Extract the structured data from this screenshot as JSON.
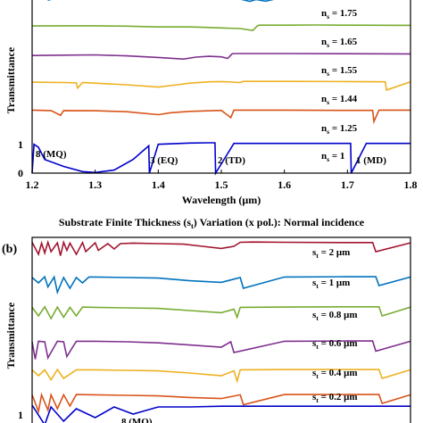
{
  "chart_data": [
    {
      "type": "line",
      "panel": "",
      "title": "",
      "xlabel": "Wavelength (μm)",
      "ylabel": "Transmittance",
      "xlim": [
        1.2,
        1.8
      ],
      "xticks": [
        "1.2",
        "1.3",
        "1.4",
        "1.5",
        "1.6",
        "1.7",
        "1.8"
      ],
      "yticks": [
        "0",
        "1"
      ],
      "series": [
        {
          "name": "n_s = 1.75",
          "sub": "s",
          "label": "n",
          "rest": " = 1.75",
          "color": "#0072bd",
          "x": [
            1.2,
            1.22,
            1.226,
            1.24,
            1.3,
            1.34,
            1.36,
            1.38,
            1.4,
            1.44,
            1.45,
            1.48,
            1.5,
            1.53,
            1.545,
            1.555,
            1.57,
            1.6,
            1.62,
            1.65,
            1.7,
            1.75,
            1.8
          ],
          "y": [
            0.93,
            0.93,
            0.82,
            0.93,
            0.92,
            0.92,
            0.91,
            0.9,
            0.91,
            0.91,
            0.88,
            0.92,
            0.9,
            0.87,
            0.75,
            0.84,
            0.76,
            0.97,
            0.98,
            0.99,
            1.0,
            1.0,
            1.0
          ]
        },
        {
          "name": "n_s = 1.65",
          "sub": "s",
          "label": "n",
          "rest": " = 1.65",
          "color": "#77ac30",
          "x": [
            1.2,
            1.25,
            1.3,
            1.35,
            1.4,
            1.45,
            1.47,
            1.5,
            1.53,
            1.55,
            1.557,
            1.56,
            1.6,
            1.65,
            1.7,
            1.8
          ],
          "y": [
            0.95,
            0.96,
            0.96,
            0.94,
            0.9,
            0.9,
            0.88,
            0.85,
            0.82,
            0.72,
            0.95,
            0.99,
            0.99,
            1.0,
            0.99,
            0.98
          ]
        },
        {
          "name": "n_s = 1.55",
          "sub": "s",
          "label": "n",
          "rest": " = 1.55",
          "color": "#7e2f8e",
          "x": [
            1.2,
            1.25,
            1.3,
            1.35,
            1.4,
            1.44,
            1.46,
            1.48,
            1.5,
            1.51,
            1.517,
            1.52,
            1.55,
            1.6,
            1.7,
            1.8
          ],
          "y": [
            0.9,
            0.92,
            0.93,
            0.88,
            0.8,
            0.72,
            0.82,
            0.86,
            0.83,
            0.75,
            0.98,
            1.0,
            1.0,
            1.0,
            0.99,
            0.98
          ]
        },
        {
          "name": "n_s = 1.44",
          "sub": "s",
          "label": "n",
          "rest": " = 1.44",
          "color": "#edb120",
          "x": [
            1.2,
            1.25,
            1.27,
            1.272,
            1.28,
            1.35,
            1.4,
            1.43,
            1.45,
            1.48,
            1.5,
            1.53,
            1.535,
            1.6,
            1.7,
            1.76,
            1.762,
            1.8
          ],
          "y": [
            0.95,
            0.93,
            0.92,
            0.65,
            0.93,
            0.82,
            0.7,
            0.82,
            0.9,
            0.97,
            0.98,
            0.93,
            0.99,
            0.99,
            0.98,
            0.97,
            0.55,
            0.97
          ]
        },
        {
          "name": "n_s = 1.25",
          "sub": "s",
          "label": "n",
          "rest": " = 1.25",
          "color": "#d95319",
          "x": [
            1.2,
            1.23,
            1.245,
            1.25,
            1.3,
            1.35,
            1.4,
            1.42,
            1.45,
            1.5,
            1.515,
            1.52,
            1.6,
            1.7,
            1.74,
            1.742,
            1.75,
            1.8
          ],
          "y": [
            0.98,
            0.96,
            0.72,
            0.96,
            0.95,
            0.9,
            0.75,
            0.85,
            0.92,
            0.97,
            0.6,
            0.98,
            0.98,
            0.97,
            0.97,
            0.4,
            0.98,
            0.98
          ]
        },
        {
          "name": "n_s = 1",
          "sub": "s",
          "label": "n",
          "rest": " = 1",
          "color": "#0000cc",
          "x": [
            1.2,
            1.203,
            1.21,
            1.22,
            1.25,
            1.28,
            1.3,
            1.33,
            1.36,
            1.385,
            1.386,
            1.4,
            1.45,
            1.48,
            1.49,
            1.491,
            1.52,
            1.6,
            1.7,
            1.705,
            1.706,
            1.73,
            1.8
          ],
          "y": [
            0.0,
            0.95,
            0.85,
            0.45,
            0.22,
            0.05,
            0.02,
            0.1,
            0.45,
            0.9,
            0.0,
            0.95,
            0.99,
            1.0,
            1.0,
            0.0,
            0.98,
            0.98,
            0.98,
            0.98,
            0.0,
            0.98,
            0.98
          ]
        }
      ],
      "annotations": [
        "8 (MQ)",
        "3 (EQ)",
        "2 (TD)",
        "1 (MD)"
      ]
    },
    {
      "type": "line",
      "panel": "(b)",
      "title": "Substrate Finite Thickness (s",
      "title_sub": "t",
      "title_rest": ") Variation (x pol.): Normal incidence",
      "xlabel": "",
      "ylabel": "Transmittance",
      "yticks": [
        "1"
      ],
      "series": [
        {
          "name": "s_t = 2 μm",
          "label": "s",
          "sub": "t",
          "rest": " = 2 μm",
          "color": "#a2142f",
          "x": [
            1.2,
            1.21,
            1.215,
            1.22,
            1.225,
            1.23,
            1.24,
            1.245,
            1.25,
            1.255,
            1.26,
            1.27,
            1.28,
            1.285,
            1.3,
            1.305,
            1.32,
            1.33,
            1.34,
            1.36,
            1.4,
            1.44,
            1.47,
            1.5,
            1.52,
            1.53,
            1.55,
            1.6,
            1.7,
            1.74,
            1.745,
            1.8
          ],
          "y": [
            0.95,
            0.5,
            0.92,
            0.55,
            0.95,
            0.6,
            0.93,
            0.45,
            0.95,
            0.65,
            0.92,
            0.5,
            0.94,
            0.6,
            0.93,
            0.65,
            0.9,
            0.7,
            0.9,
            0.92,
            0.9,
            0.88,
            0.8,
            0.72,
            0.8,
            0.95,
            0.96,
            0.95,
            0.94,
            0.94,
            0.6,
            0.93
          ]
        },
        {
          "name": "s_t = 1 μm",
          "label": "s",
          "sub": "t",
          "rest": " = 1 μm",
          "color": "#0072bd",
          "x": [
            1.2,
            1.21,
            1.22,
            1.225,
            1.235,
            1.24,
            1.25,
            1.26,
            1.27,
            1.28,
            1.29,
            1.3,
            1.35,
            1.4,
            1.45,
            1.5,
            1.53,
            1.535,
            1.6,
            1.7,
            1.745,
            1.75,
            1.8
          ],
          "y": [
            0.9,
            0.7,
            0.93,
            0.55,
            0.92,
            0.35,
            0.9,
            0.5,
            0.9,
            0.7,
            0.92,
            0.92,
            0.9,
            0.88,
            0.78,
            0.72,
            0.9,
            0.5,
            0.92,
            0.93,
            0.93,
            0.6,
            0.92
          ]
        },
        {
          "name": "s_t = 0.8 μm",
          "label": "s",
          "sub": "t",
          "rest": " = 0.8 μm",
          "color": "#77ac30",
          "x": [
            1.2,
            1.21,
            1.22,
            1.23,
            1.24,
            1.25,
            1.26,
            1.27,
            1.28,
            1.3,
            1.35,
            1.4,
            1.45,
            1.5,
            1.52,
            1.525,
            1.53,
            1.6,
            1.7,
            1.75,
            1.755,
            1.8
          ],
          "y": [
            0.92,
            0.6,
            0.94,
            0.5,
            0.93,
            0.55,
            0.92,
            0.6,
            0.93,
            0.92,
            0.9,
            0.88,
            0.8,
            0.72,
            0.85,
            0.55,
            0.92,
            0.93,
            0.94,
            0.94,
            0.6,
            0.93
          ]
        },
        {
          "name": "s_t = 0.6 μm",
          "label": "s",
          "sub": "t",
          "rest": " = 0.6 μm",
          "color": "#7e2f8e",
          "x": [
            1.2,
            1.205,
            1.21,
            1.22,
            1.225,
            1.24,
            1.25,
            1.255,
            1.27,
            1.3,
            1.35,
            1.4,
            1.45,
            1.5,
            1.515,
            1.52,
            1.6,
            1.7,
            1.74,
            1.745,
            1.8
          ],
          "y": [
            0.9,
            0.25,
            0.92,
            0.9,
            0.3,
            0.92,
            0.9,
            0.35,
            0.92,
            0.92,
            0.9,
            0.86,
            0.78,
            0.7,
            0.9,
            0.5,
            0.92,
            0.93,
            0.93,
            0.55,
            0.92
          ]
        },
        {
          "name": "s_t = 0.4 μm",
          "label": "s",
          "sub": "t",
          "rest": " = 0.4 μm",
          "color": "#edb120",
          "x": [
            1.2,
            1.21,
            1.22,
            1.23,
            1.24,
            1.25,
            1.27,
            1.3,
            1.35,
            1.4,
            1.45,
            1.5,
            1.52,
            1.525,
            1.53,
            1.6,
            1.7,
            1.75,
            1.755,
            1.8
          ],
          "y": [
            0.92,
            0.7,
            0.92,
            0.55,
            0.93,
            0.6,
            0.92,
            0.92,
            0.9,
            0.88,
            0.8,
            0.7,
            0.88,
            0.5,
            0.92,
            0.93,
            0.93,
            0.93,
            0.6,
            0.92
          ]
        },
        {
          "name": "s_t = 0.2 μm",
          "label": "s",
          "sub": "t",
          "rest": " = 0.2 μm",
          "color": "#d95319",
          "x": [
            1.2,
            1.21,
            1.215,
            1.225,
            1.23,
            1.24,
            1.25,
            1.26,
            1.27,
            1.3,
            1.35,
            1.4,
            1.45,
            1.5,
            1.53,
            1.535,
            1.6,
            1.7,
            1.75,
            1.755,
            1.8
          ],
          "y": [
            0.92,
            0.3,
            0.92,
            0.35,
            0.92,
            0.4,
            0.92,
            0.5,
            0.93,
            0.92,
            0.9,
            0.88,
            0.82,
            0.78,
            0.92,
            0.55,
            0.93,
            0.93,
            0.93,
            0.6,
            0.92
          ]
        },
        {
          "name": "",
          "label": "",
          "sub": "",
          "rest": "",
          "color": "#0000cc",
          "x": [
            1.2,
            1.22,
            1.23,
            1.25,
            1.27,
            1.3,
            1.33,
            1.36,
            1.4,
            1.45,
            1.5,
            1.6,
            1.7,
            1.8
          ],
          "y": [
            0.95,
            0.4,
            0.9,
            0.5,
            0.85,
            0.6,
            0.9,
            0.7,
            0.9,
            0.9,
            0.92,
            0.92,
            0.92,
            0.92
          ]
        }
      ],
      "annotations": [
        "8 (MQ)"
      ]
    }
  ]
}
